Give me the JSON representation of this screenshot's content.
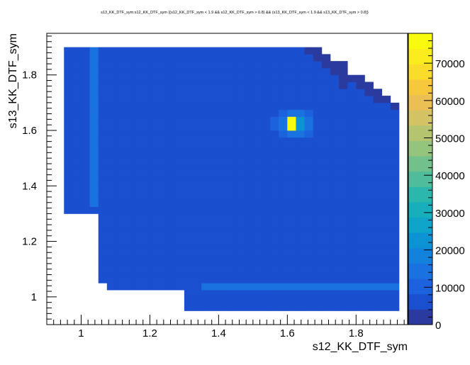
{
  "chart_data": {
    "type": "heatmap",
    "title": "s13_KK_DTF_sym:s12_KK_DTF_sym {(s12_KK_DTF_sym < 1.9 && s12_KK_DTF_sym > 0.8) && (s13_KK_DTF_sym < 1.9 && s13_KK_DTF_sym > 0.8)}",
    "xlabel": "s12_KK_DTF_sym",
    "ylabel": "s13_KK_DTF_sym",
    "xlim": [
      0.9,
      1.95
    ],
    "ylim": [
      0.9,
      1.95
    ],
    "x_ticks": [
      1,
      1.2,
      1.4,
      1.6,
      1.8
    ],
    "x_tick_labels": [
      "1",
      "1.2",
      "1.4",
      "1.6",
      "1.8"
    ],
    "y_ticks": [
      1,
      1.2,
      1.4,
      1.6,
      1.8
    ],
    "y_tick_labels": [
      "1",
      "1.2",
      "1.4",
      "1.6",
      "1.8"
    ],
    "bin_width": 0.025,
    "z_range": [
      0,
      78000
    ],
    "z_ticks": [
      0,
      10000,
      20000,
      30000,
      40000,
      50000,
      60000,
      70000
    ],
    "z_tick_labels": [
      "0",
      "10000",
      "20000",
      "30000",
      "40000",
      "50000",
      "60000",
      "70000"
    ],
    "grid": false,
    "colormap": [
      "#2b3a9e",
      "#1a4fd0",
      "#1c61dd",
      "#1a72e0",
      "#1382dc",
      "#0c93d4",
      "#0ea3c8",
      "#16afbb",
      "#2cb7ad",
      "#4fbd9c",
      "#72c18b",
      "#95c47c",
      "#b5c56f",
      "#d3c364",
      "#ecbf55",
      "#f8c83c",
      "#fadc2a",
      "#fbed1d",
      "#f9fb0e"
    ],
    "regions": [
      {
        "description": "kinematic domain (diagonal band)",
        "typical_value": 8000
      },
      {
        "description": "enhancement near s12 = 1.05",
        "typical_value": 14000
      },
      {
        "description": "enhancement near s13 = 1.05",
        "typical_value": 14000
      },
      {
        "description": "peak near s12 = 1.62, s13 = 1.625",
        "value": 78000
      }
    ]
  }
}
